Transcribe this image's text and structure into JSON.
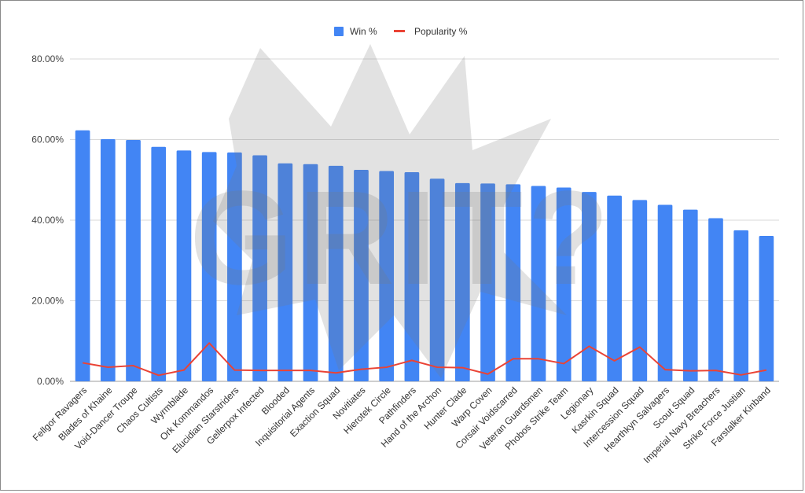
{
  "chart_data": {
    "type": "bar",
    "categories": [
      "Fellgor Ravagers",
      "Blades of Khaine",
      "Void-Dancer Troupe",
      "Chaos Cultists",
      "Wyrmblade",
      "Ork Kommandos",
      "Elucidian Starstriders",
      "Gellerpox Infected",
      "Blooded",
      "Inquisitorial Agents",
      "Exaction Squad",
      "Novitiates",
      "Hierotek Circle",
      "Pathfinders",
      "Hand of the Archon",
      "Hunter Clade",
      "Warp Coven",
      "Corsair Voidscarred",
      "Veteran Guardsmen",
      "Phobos Strike Team",
      "Legionary",
      "Kasrkin Squad",
      "Intercession Squad",
      "Hearthkyn Salvagers",
      "Scout Squad",
      "Imperial Navy Breachers",
      "Strike Force Justian",
      "Farstalker Kinband"
    ],
    "series": [
      {
        "name": "Win %",
        "type": "bar",
        "color": "#4285f4",
        "values": [
          62.3,
          60.1,
          59.9,
          58.2,
          57.3,
          56.9,
          56.8,
          56.1,
          54.1,
          53.9,
          53.5,
          52.5,
          52.2,
          51.9,
          50.3,
          49.2,
          49.1,
          48.9,
          48.5,
          48.1,
          47.0,
          46.1,
          45.0,
          43.8,
          42.6,
          40.5,
          37.5,
          36.1
        ]
      },
      {
        "name": "Popularity %",
        "type": "line",
        "color": "#ea4335",
        "values": [
          4.6,
          3.5,
          3.9,
          1.5,
          2.8,
          9.5,
          2.8,
          2.7,
          2.7,
          2.7,
          2.1,
          3.0,
          3.5,
          5.2,
          3.5,
          3.4,
          1.8,
          5.6,
          5.6,
          4.4,
          8.7,
          5.1,
          8.5,
          2.9,
          2.6,
          2.7,
          1.6,
          2.8
        ]
      }
    ],
    "yticks": [
      "0.00%",
      "20.00%",
      "40.00%",
      "60.00%",
      "80.00%"
    ],
    "ylim": [
      0,
      80
    ],
    "grid": true,
    "legend_position": "top-center",
    "title": "",
    "xlabel": "",
    "ylabel": ""
  }
}
